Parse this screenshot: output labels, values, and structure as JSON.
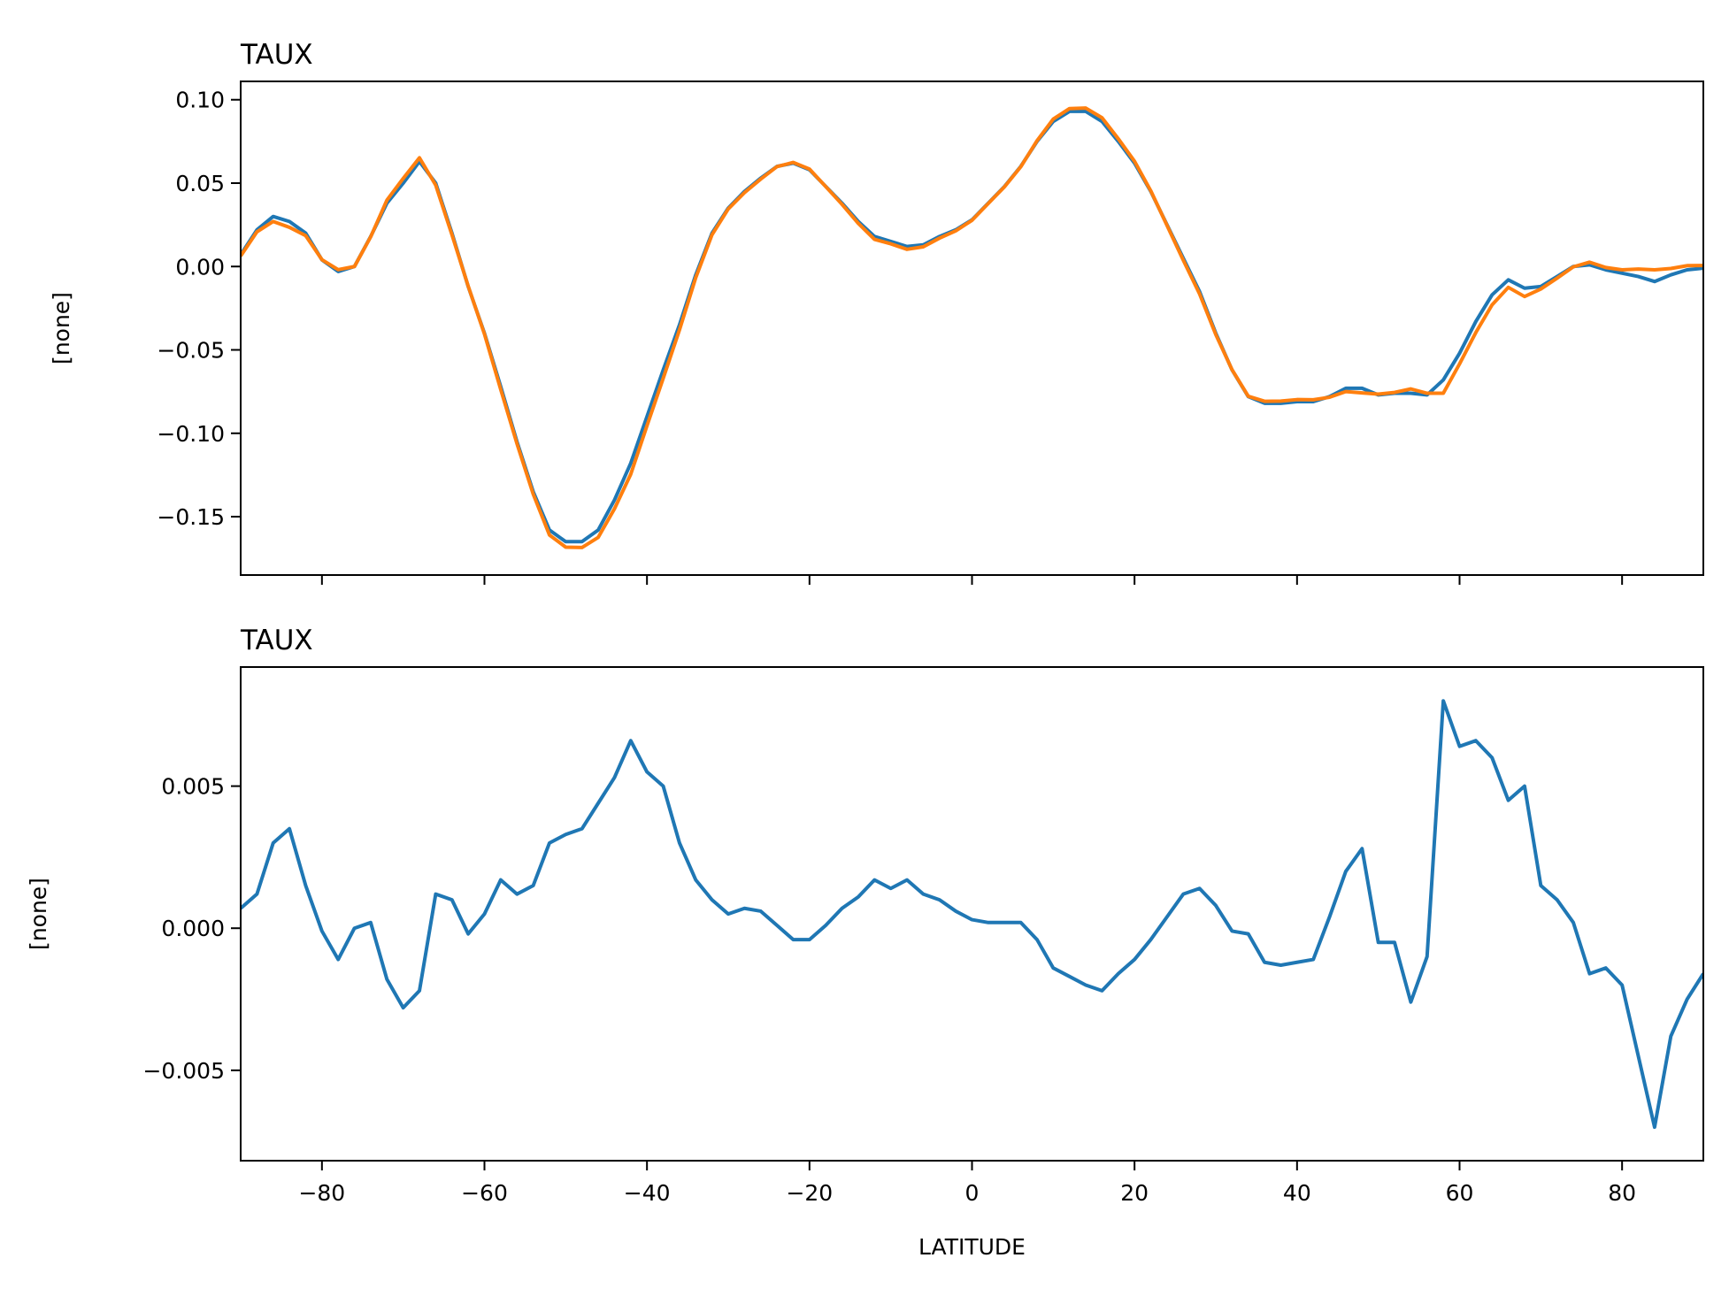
{
  "chart_data": [
    {
      "type": "line",
      "title": "TAUX",
      "y_label": "[none]",
      "show_xtick_labels": false,
      "x": [
        -90,
        -88,
        -86,
        -84,
        -82,
        -80,
        -78,
        -76,
        -74,
        -72,
        -70,
        -68,
        -66,
        -64,
        -62,
        -60,
        -58,
        -56,
        -54,
        -52,
        -50,
        -48,
        -46,
        -44,
        -42,
        -40,
        -38,
        -36,
        -34,
        -32,
        -30,
        -28,
        -26,
        -24,
        -22,
        -20,
        -18,
        -16,
        -14,
        -12,
        -10,
        -8,
        -6,
        -4,
        -2,
        0,
        2,
        4,
        6,
        8,
        10,
        12,
        14,
        16,
        18,
        20,
        22,
        24,
        26,
        28,
        30,
        32,
        34,
        36,
        38,
        40,
        42,
        44,
        46,
        48,
        50,
        52,
        54,
        56,
        58,
        60,
        62,
        64,
        66,
        68,
        70,
        72,
        74,
        76,
        78,
        80,
        82,
        84,
        86,
        88,
        90
      ],
      "series": [
        {
          "color": "#1f77b4",
          "values": [
            0.007,
            0.022,
            0.03,
            0.027,
            0.02,
            0.004,
            -0.003,
            0.0,
            0.018,
            0.038,
            0.05,
            0.063,
            0.05,
            0.02,
            -0.012,
            -0.04,
            -0.072,
            -0.105,
            -0.135,
            -0.158,
            -0.165,
            -0.165,
            -0.158,
            -0.14,
            -0.118,
            -0.09,
            -0.062,
            -0.035,
            -0.005,
            0.02,
            0.035,
            0.045,
            0.053,
            0.06,
            0.062,
            0.058,
            0.048,
            0.038,
            0.027,
            0.018,
            0.015,
            0.012,
            0.013,
            0.018,
            0.022,
            0.028,
            0.038,
            0.048,
            0.06,
            0.075,
            0.087,
            0.093,
            0.093,
            0.087,
            0.075,
            0.062,
            0.045,
            0.025,
            0.005,
            -0.015,
            -0.04,
            -0.062,
            -0.078,
            -0.082,
            -0.082,
            -0.081,
            -0.081,
            -0.078,
            -0.073,
            -0.073,
            -0.077,
            -0.076,
            -0.076,
            -0.077,
            -0.068,
            -0.052,
            -0.033,
            -0.017,
            -0.008,
            -0.013,
            -0.012,
            -0.006,
            0.0,
            0.001,
            -0.002,
            -0.004,
            -0.006,
            -0.009,
            -0.005,
            -0.002,
            -0.001
          ]
        },
        {
          "color": "#ff7f0e",
          "values": [
            0.0063,
            0.0208,
            0.027,
            0.0235,
            0.0185,
            0.0041,
            -0.0019,
            0.0,
            0.0178,
            0.0398,
            0.0528,
            0.0652,
            0.0488,
            0.019,
            -0.0118,
            -0.0405,
            -0.0737,
            -0.1062,
            -0.1365,
            -0.161,
            -0.1683,
            -0.1685,
            -0.1624,
            -0.1453,
            -0.1246,
            -0.0955,
            -0.067,
            -0.038,
            -0.0067,
            0.019,
            0.0345,
            0.0443,
            0.0524,
            0.0599,
            0.0624,
            0.0584,
            0.0479,
            0.0373,
            0.0259,
            0.0163,
            0.0136,
            0.0103,
            0.0118,
            0.017,
            0.0214,
            0.0277,
            0.0378,
            0.0478,
            0.0598,
            0.0754,
            0.0884,
            0.0947,
            0.095,
            0.0892,
            0.0766,
            0.0631,
            0.0454,
            0.0246,
            0.0038,
            -0.0164,
            -0.0408,
            -0.0619,
            -0.0778,
            -0.0808,
            -0.0807,
            -0.0798,
            -0.0799,
            -0.0784,
            -0.075,
            -0.0758,
            -0.0765,
            -0.0755,
            -0.0734,
            -0.076,
            -0.076,
            -0.0584,
            -0.0396,
            -0.023,
            -0.0125,
            -0.018,
            -0.0135,
            -0.007,
            -0.0002,
            0.0026,
            -0.0006,
            -0.002,
            -0.0015,
            -0.002,
            -0.0012,
            0.0005,
            0.0006
          ]
        }
      ],
      "xlim": [
        -90,
        90
      ],
      "xticks": [
        {
          "value": -80,
          "label": "−80"
        },
        {
          "value": -60,
          "label": "−60"
        },
        {
          "value": -40,
          "label": "−40"
        },
        {
          "value": -20,
          "label": "−20"
        },
        0,
        20,
        40,
        60,
        80
      ],
      "ylim": [
        -0.185,
        0.111
      ],
      "yticks": [
        {
          "value": -0.15,
          "label": "−0.15"
        },
        {
          "value": -0.1,
          "label": "−0.10"
        },
        {
          "value": -0.05,
          "label": "−0.05"
        },
        {
          "value": 0,
          "label": "0.00"
        },
        0.05,
        {
          "value": 0.1,
          "label": "0.10"
        }
      ]
    },
    {
      "type": "line",
      "title": "TAUX",
      "y_label": "[none]",
      "x_label": "LATITUDE",
      "show_xtick_labels": true,
      "x": [
        -90,
        -88,
        -86,
        -84,
        -82,
        -80,
        -78,
        -76,
        -74,
        -72,
        -70,
        -68,
        -66,
        -64,
        -62,
        -60,
        -58,
        -56,
        -54,
        -52,
        -50,
        -48,
        -46,
        -44,
        -42,
        -40,
        -38,
        -36,
        -34,
        -32,
        -30,
        -28,
        -26,
        -24,
        -22,
        -20,
        -18,
        -16,
        -14,
        -12,
        -10,
        -8,
        -6,
        -4,
        -2,
        0,
        2,
        4,
        6,
        8,
        10,
        12,
        14,
        16,
        18,
        20,
        22,
        24,
        26,
        28,
        30,
        32,
        34,
        36,
        38,
        40,
        42,
        44,
        46,
        48,
        50,
        52,
        54,
        56,
        58,
        60,
        62,
        64,
        66,
        68,
        70,
        72,
        74,
        76,
        78,
        80,
        82,
        84,
        86,
        88,
        90
      ],
      "series": [
        {
          "color": "#1f77b4",
          "values": [
            0.0007,
            0.0012,
            0.003,
            0.0035,
            0.0015,
            -0.0001,
            -0.0011,
            0.0,
            0.0002,
            -0.0018,
            -0.0028,
            -0.0022,
            0.0012,
            0.001,
            -0.0002,
            0.0005,
            0.0017,
            0.0012,
            0.0015,
            0.003,
            0.0033,
            0.0035,
            0.0044,
            0.0053,
            0.0066,
            0.0055,
            0.005,
            0.003,
            0.0017,
            0.001,
            0.0005,
            0.0007,
            0.0006,
            0.0001,
            -0.0004,
            -0.0004,
            0.0001,
            0.0007,
            0.0011,
            0.0017,
            0.0014,
            0.0017,
            0.0012,
            0.001,
            0.0006,
            0.0003,
            0.0002,
            0.0002,
            0.0002,
            -0.0004,
            -0.0014,
            -0.0017,
            -0.002,
            -0.0022,
            -0.0016,
            -0.0011,
            -0.0004,
            0.0004,
            0.0012,
            0.0014,
            0.0008,
            -0.0001,
            -0.0002,
            -0.0012,
            -0.0013,
            -0.0012,
            -0.0011,
            0.0004,
            0.002,
            0.0028,
            -0.0005,
            -0.0005,
            -0.0026,
            -0.001,
            0.008,
            0.0064,
            0.0066,
            0.006,
            0.0045,
            0.005,
            0.0015,
            0.001,
            0.0002,
            -0.0016,
            -0.0014,
            -0.002,
            -0.0045,
            -0.007,
            -0.0038,
            -0.0025,
            -0.0016
          ]
        }
      ],
      "xlim": [
        -90,
        90
      ],
      "xticks": [
        {
          "value": -80,
          "label": "−80"
        },
        {
          "value": -60,
          "label": "−60"
        },
        {
          "value": -40,
          "label": "−40"
        },
        {
          "value": -20,
          "label": "−20"
        },
        0,
        20,
        40,
        60,
        80
      ],
      "ylim": [
        -0.00818,
        0.00919
      ],
      "yticks": [
        {
          "value": -0.005,
          "label": "−0.005"
        },
        {
          "value": 0,
          "label": "0.000"
        },
        0.005
      ]
    }
  ]
}
